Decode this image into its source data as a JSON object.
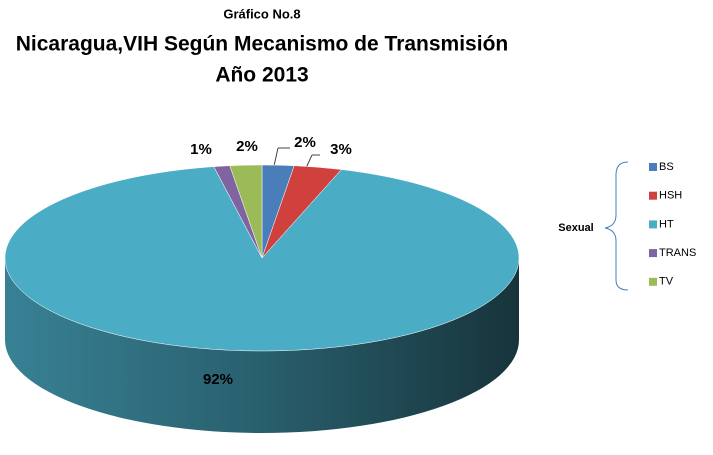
{
  "chart_data": {
    "type": "pie3d",
    "title": "Gráfico No.8",
    "subtitle": [
      "Nicaragua,VIH Según Mecanismo de Transmisión",
      "Año 2013"
    ],
    "annotation": "Sexual",
    "categories": [
      "BS",
      "HSH",
      "HT",
      "TRANS",
      "TV"
    ],
    "values": [
      2,
      3,
      92,
      1,
      2
    ],
    "value_labels": [
      "2%",
      "3%",
      "92%",
      "1%",
      "2%"
    ],
    "colors": [
      "#4a7ebb",
      "#d0403c",
      "#4bacc6",
      "#8064a2",
      "#9bbb59"
    ]
  }
}
